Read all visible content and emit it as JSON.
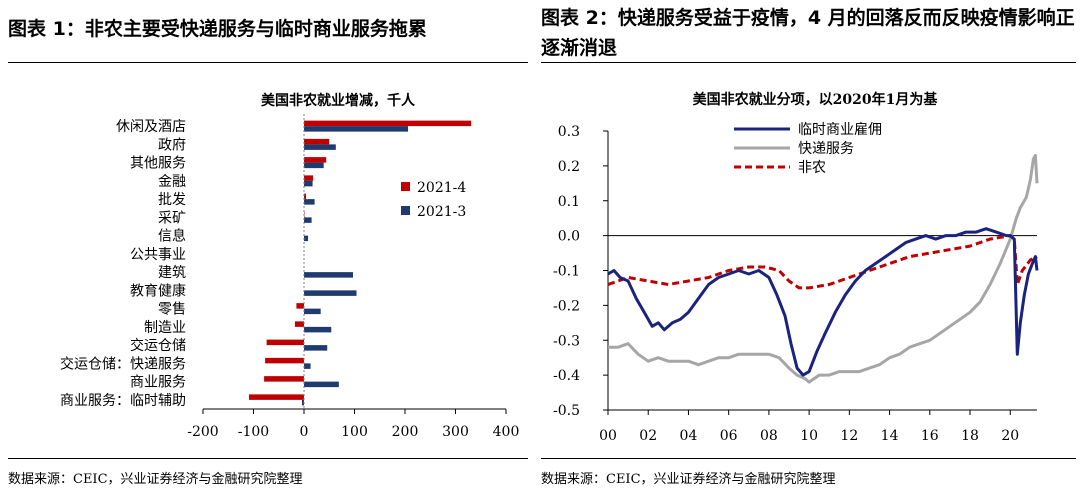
{
  "left": {
    "header": "图表 1：非农主要受快递服务与临时商业服务拖累",
    "source": "数据来源：CEIC，兴业证券经济与金融研究院整理",
    "chart_data": {
      "type": "bar",
      "orientation": "horizontal",
      "title": "美国非农就业增减，千人",
      "categories": [
        "休闲及酒店",
        "政府",
        "其他服务",
        "金融",
        "批发",
        "采矿",
        "信息",
        "公共事业",
        "建筑",
        "教育健康",
        "零售",
        "制造业",
        "交运仓储",
        "交运仓储：快递服务",
        "商业服务",
        "商业服务：临时辅助"
      ],
      "series": [
        {
          "name": "2021-4",
          "color": "#c00000",
          "values": [
            331,
            50,
            44,
            18,
            4,
            1,
            0,
            0,
            0,
            0,
            -15,
            -18,
            -74,
            -77,
            -79,
            -109
          ]
        },
        {
          "name": "2021-3",
          "color": "#1f3a6e",
          "values": [
            206,
            63,
            39,
            17,
            21,
            15,
            8,
            0,
            97,
            104,
            33,
            54,
            46,
            13,
            69,
            -4
          ]
        }
      ],
      "xlim": [
        -200,
        400
      ],
      "xticks": [
        -200,
        -100,
        0,
        100,
        200,
        300,
        400
      ],
      "legend_position": "center-right"
    }
  },
  "right": {
    "header": "图表 2：快递服务受益于疫情，4 月的回落反而反映疫情影响正逐渐消退",
    "source": "数据来源：CEIC，兴业证券经济与金融研究院整理",
    "chart_data": {
      "type": "line",
      "title": "美国非农就业分项，以2020年1月为基",
      "x_range": [
        2000,
        2021.33
      ],
      "xticks": [
        "00",
        "02",
        "04",
        "06",
        "08",
        "10",
        "12",
        "14",
        "16",
        "18",
        "20"
      ],
      "ylim": [
        -0.5,
        0.3
      ],
      "yticks": [
        -0.5,
        -0.4,
        -0.3,
        -0.2,
        -0.1,
        0.0,
        0.1,
        0.2,
        0.3
      ],
      "legend_position": "top-left",
      "series": [
        {
          "name": "临时商业雇佣",
          "color": "#1a237e",
          "style": "solid",
          "x": [
            2000.0,
            2000.3,
            2000.6,
            2001.0,
            2001.4,
            2001.8,
            2002.2,
            2002.5,
            2002.8,
            2003.2,
            2003.6,
            2004.0,
            2004.5,
            2005.0,
            2005.5,
            2006.0,
            2006.5,
            2007.0,
            2007.5,
            2008.0,
            2008.4,
            2008.8,
            2009.1,
            2009.4,
            2009.7,
            2010.0,
            2010.4,
            2010.8,
            2011.3,
            2011.8,
            2012.3,
            2012.8,
            2013.3,
            2013.8,
            2014.3,
            2014.8,
            2015.3,
            2015.8,
            2016.3,
            2016.8,
            2017.3,
            2017.8,
            2018.3,
            2018.8,
            2019.3,
            2019.8,
            2020.0,
            2020.2,
            2020.35,
            2020.5,
            2020.7,
            2020.9,
            2021.1,
            2021.25,
            2021.33
          ],
          "y": [
            -0.11,
            -0.1,
            -0.12,
            -0.13,
            -0.18,
            -0.22,
            -0.26,
            -0.25,
            -0.27,
            -0.25,
            -0.24,
            -0.22,
            -0.18,
            -0.14,
            -0.12,
            -0.11,
            -0.1,
            -0.11,
            -0.1,
            -0.12,
            -0.17,
            -0.23,
            -0.31,
            -0.38,
            -0.4,
            -0.39,
            -0.33,
            -0.28,
            -0.22,
            -0.17,
            -0.13,
            -0.1,
            -0.08,
            -0.06,
            -0.04,
            -0.02,
            -0.01,
            0.0,
            -0.01,
            0.0,
            0.0,
            0.01,
            0.01,
            0.02,
            0.01,
            0.0,
            0.0,
            -0.01,
            -0.34,
            -0.25,
            -0.17,
            -0.11,
            -0.08,
            -0.06,
            -0.1
          ]
        },
        {
          "name": "快递服务",
          "color": "#a6a6a6",
          "style": "solid",
          "x": [
            2000.0,
            2000.5,
            2001.0,
            2001.5,
            2002.0,
            2002.5,
            2003.0,
            2003.5,
            2004.0,
            2004.5,
            2005.0,
            2005.5,
            2006.0,
            2006.5,
            2007.0,
            2007.5,
            2008.0,
            2008.5,
            2009.0,
            2009.4,
            2009.8,
            2010.0,
            2010.5,
            2011.0,
            2011.5,
            2012.0,
            2012.5,
            2013.0,
            2013.5,
            2014.0,
            2014.5,
            2015.0,
            2015.5,
            2016.0,
            2016.5,
            2017.0,
            2017.5,
            2018.0,
            2018.5,
            2019.0,
            2019.5,
            2020.0,
            2020.3,
            2020.5,
            2020.8,
            2021.0,
            2021.15,
            2021.25,
            2021.33
          ],
          "y": [
            -0.32,
            -0.32,
            -0.31,
            -0.34,
            -0.36,
            -0.35,
            -0.36,
            -0.36,
            -0.36,
            -0.37,
            -0.36,
            -0.35,
            -0.35,
            -0.34,
            -0.34,
            -0.34,
            -0.34,
            -0.35,
            -0.38,
            -0.4,
            -0.41,
            -0.42,
            -0.4,
            -0.4,
            -0.39,
            -0.39,
            -0.39,
            -0.38,
            -0.37,
            -0.35,
            -0.34,
            -0.32,
            -0.31,
            -0.3,
            -0.28,
            -0.26,
            -0.24,
            -0.22,
            -0.19,
            -0.14,
            -0.08,
            -0.01,
            0.05,
            0.08,
            0.11,
            0.16,
            0.22,
            0.23,
            0.15
          ]
        },
        {
          "name": "非农",
          "color": "#c00000",
          "style": "dashed",
          "x": [
            2000.0,
            2001.0,
            2002.0,
            2003.0,
            2004.0,
            2005.0,
            2006.0,
            2007.0,
            2007.8,
            2008.5,
            2009.0,
            2009.5,
            2010.0,
            2011.0,
            2012.0,
            2013.0,
            2014.0,
            2015.0,
            2016.0,
            2017.0,
            2018.0,
            2019.0,
            2020.0,
            2020.2,
            2020.35,
            2020.6,
            2021.0,
            2021.33
          ],
          "y": [
            -0.14,
            -0.12,
            -0.13,
            -0.14,
            -0.13,
            -0.12,
            -0.1,
            -0.09,
            -0.09,
            -0.1,
            -0.13,
            -0.15,
            -0.15,
            -0.14,
            -0.12,
            -0.1,
            -0.08,
            -0.06,
            -0.05,
            -0.04,
            -0.03,
            -0.01,
            0.0,
            -0.01,
            -0.14,
            -0.1,
            -0.07,
            -0.06
          ]
        }
      ]
    }
  }
}
